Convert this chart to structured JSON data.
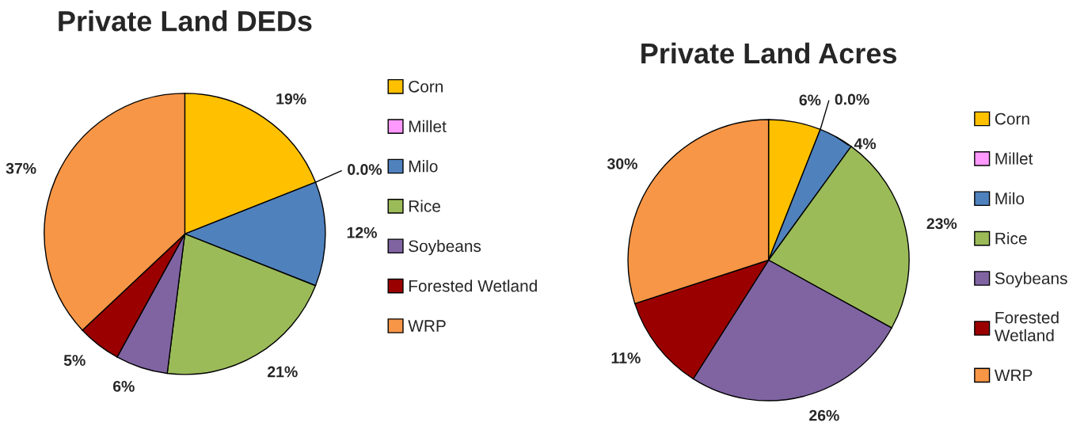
{
  "chart_data": [
    {
      "type": "pie",
      "title": "Private Land DEDs",
      "categories": [
        "Corn",
        "Millet",
        "Milo",
        "Rice",
        "Soybeans",
        "Forested Wetland",
        "WRP"
      ],
      "values": [
        19,
        0.0,
        12,
        21,
        6,
        5,
        37
      ],
      "value_labels": [
        "19%",
        "0.0%",
        "12%",
        "21%",
        "6%",
        "5%",
        "37%"
      ],
      "colors": [
        "#ffc000",
        "#ff99ff",
        "#4f81bd",
        "#9bbb59",
        "#8064a2",
        "#9b0000",
        "#f79646"
      ],
      "legend": "right"
    },
    {
      "type": "pie",
      "title": "Private Land Acres",
      "categories": [
        "Corn",
        "Millet",
        "Milo",
        "Rice",
        "Soybeans",
        "Forested Wetland",
        "WRP"
      ],
      "values": [
        6,
        0.0,
        4,
        23,
        26,
        11,
        30
      ],
      "value_labels": [
        "6%",
        "0.0%",
        "4%",
        "23%",
        "26%",
        "11%",
        "30%"
      ],
      "colors": [
        "#ffc000",
        "#ff99ff",
        "#4f81bd",
        "#9bbb59",
        "#8064a2",
        "#9b0000",
        "#f79646"
      ],
      "legend": "right"
    }
  ]
}
